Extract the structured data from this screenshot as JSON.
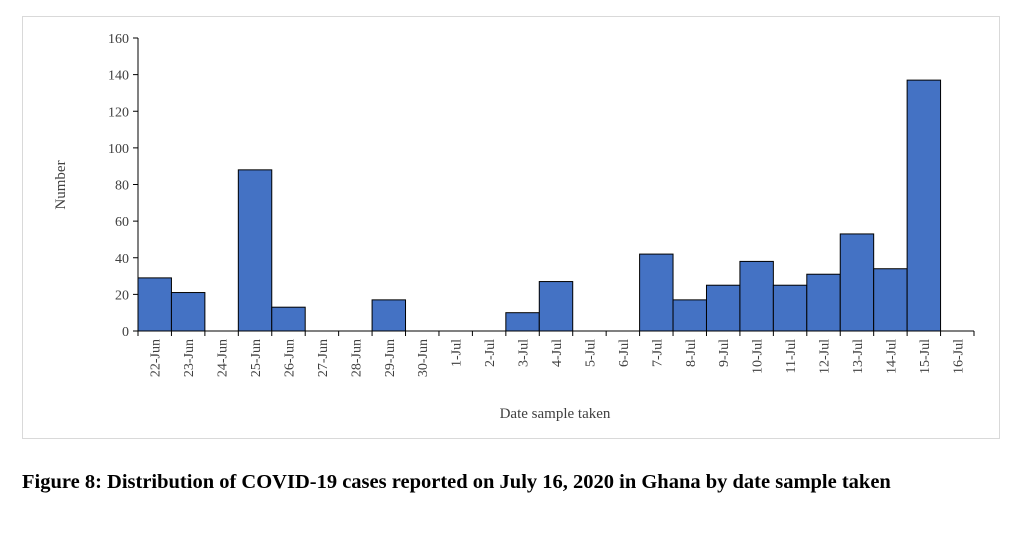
{
  "chart_data": {
    "type": "bar",
    "xlabel": "Date sample taken",
    "ylabel": "Number",
    "ylim": [
      0,
      160
    ],
    "yticks": [
      0,
      20,
      40,
      60,
      80,
      100,
      120,
      140,
      160
    ],
    "categories": [
      "22-Jun",
      "23-Jun",
      "24-Jun",
      "25-Jun",
      "26-Jun",
      "27-Jun",
      "28-Jun",
      "29-Jun",
      "30-Jun",
      "1-Jul",
      "2-Jul",
      "3-Jul",
      "4-Jul",
      "5-Jul",
      "6-Jul",
      "7-Jul",
      "8-Jul",
      "9-Jul",
      "10-Jul",
      "11-Jul",
      "12-Jul",
      "13-Jul",
      "14-Jul",
      "15-Jul",
      "16-Jul"
    ],
    "values": [
      29,
      21,
      0,
      88,
      13,
      0,
      0,
      17,
      0,
      0,
      0,
      10,
      27,
      0,
      0,
      42,
      17,
      25,
      38,
      25,
      31,
      53,
      34,
      137,
      0
    ],
    "bar_color": "#4472c4",
    "grid": false,
    "legend": "none"
  },
  "caption": {
    "text": "Figure 8: Distribution of COVID-19 cases reported on July 16, 2020 in Ghana by date sample taken"
  }
}
